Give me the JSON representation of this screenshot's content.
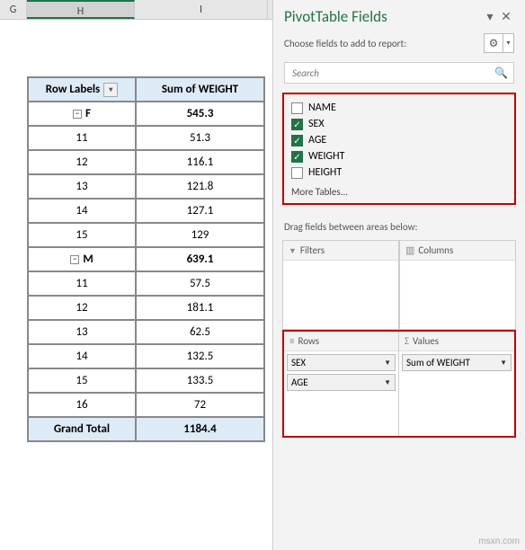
{
  "columns": {
    "g": "G",
    "h": "H",
    "i": "I"
  },
  "pivot": {
    "header": {
      "rowlabels": "Row Labels",
      "sumcol": "Sum of WEIGHT"
    },
    "groups": [
      {
        "label": "F",
        "total": "545.3",
        "rows": [
          {
            "k": "11",
            "v": "51.3"
          },
          {
            "k": "12",
            "v": "116.1"
          },
          {
            "k": "13",
            "v": "121.8"
          },
          {
            "k": "14",
            "v": "127.1"
          },
          {
            "k": "15",
            "v": "129"
          }
        ]
      },
      {
        "label": "M",
        "total": "639.1",
        "rows": [
          {
            "k": "11",
            "v": "57.5"
          },
          {
            "k": "12",
            "v": "181.1"
          },
          {
            "k": "13",
            "v": "62.5"
          },
          {
            "k": "14",
            "v": "132.5"
          },
          {
            "k": "15",
            "v": "133.5"
          },
          {
            "k": "16",
            "v": "72"
          }
        ]
      }
    ],
    "grand": {
      "label": "Grand Total",
      "value": "1184.4"
    }
  },
  "pane": {
    "title": "PivotTable Fields",
    "subtitle": "Choose fields to add to report:",
    "search_placeholder": "Search",
    "fields": [
      {
        "name": "NAME",
        "checked": false
      },
      {
        "name": "SEX",
        "checked": true
      },
      {
        "name": "AGE",
        "checked": true
      },
      {
        "name": "WEIGHT",
        "checked": true
      },
      {
        "name": "HEIGHT",
        "checked": false
      }
    ],
    "more": "More Tables...",
    "drag_label": "Drag fields between areas below:",
    "areas": {
      "filters": "Filters",
      "columns": "Columns",
      "rows": "Rows",
      "values": "Values"
    },
    "rows_chips": [
      "SEX",
      "AGE"
    ],
    "values_chips": [
      "Sum of WEIGHT"
    ]
  },
  "watermark": "msxn.com"
}
